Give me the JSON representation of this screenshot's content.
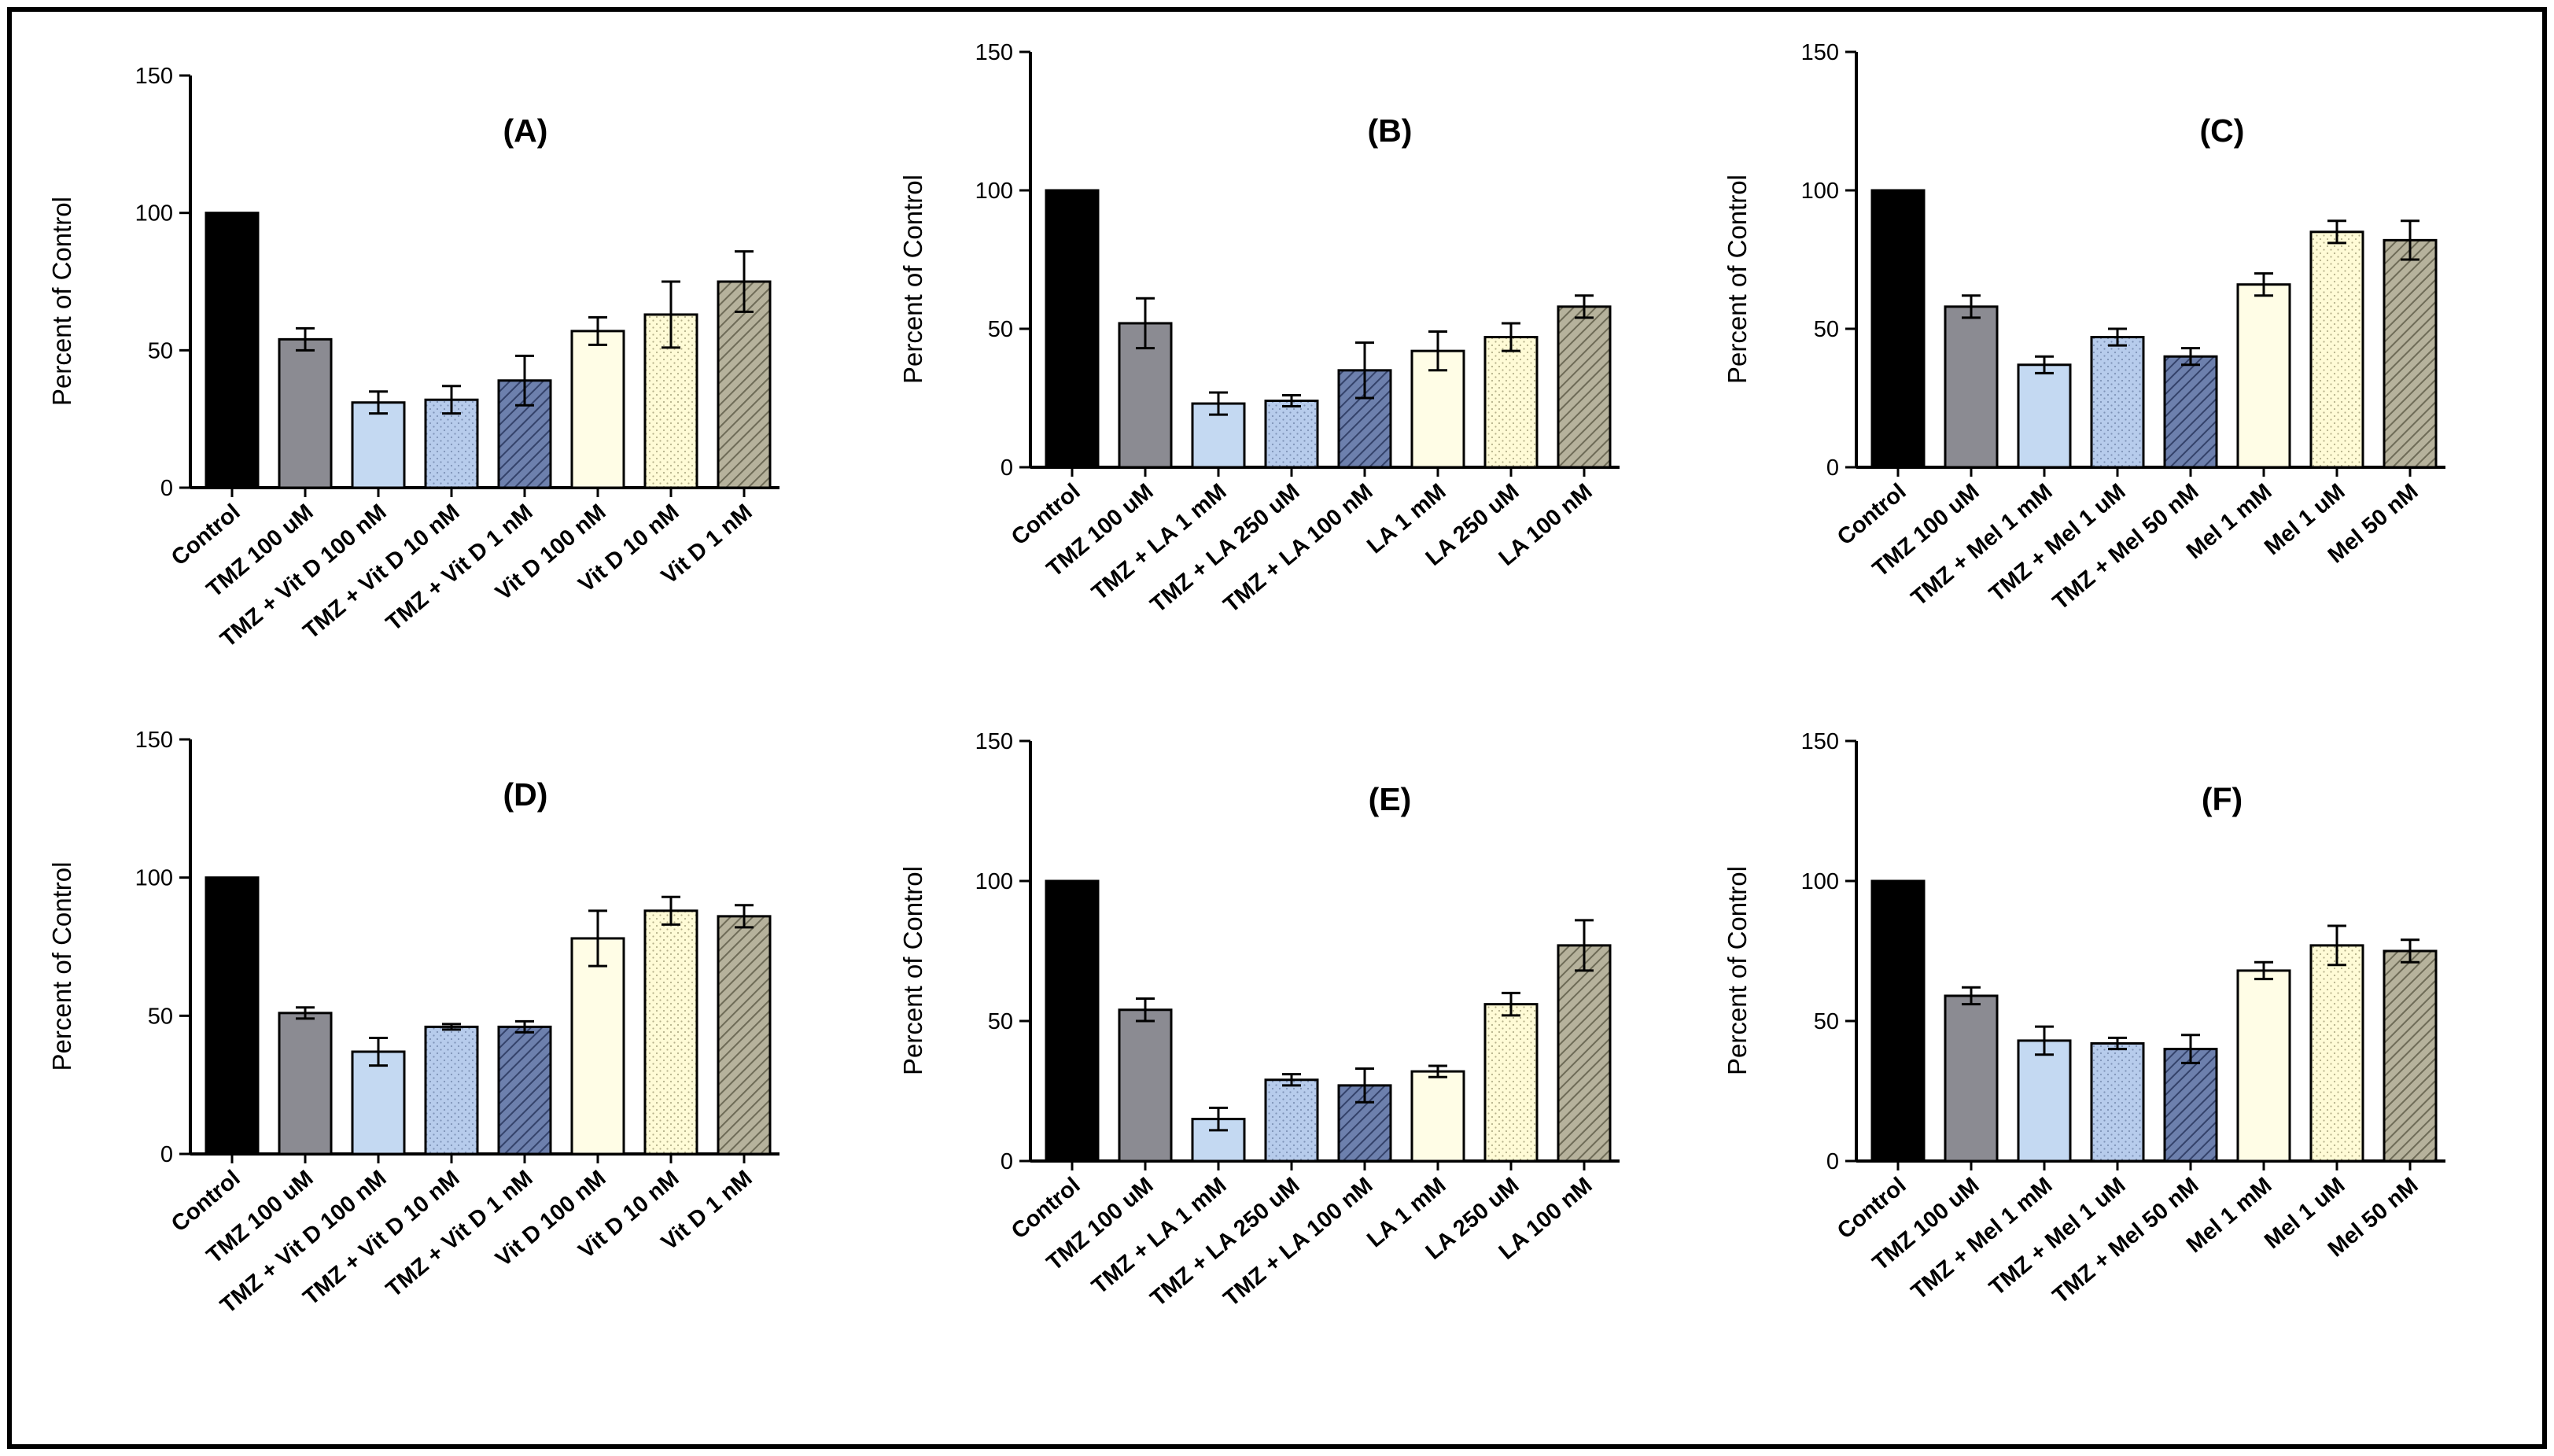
{
  "colors": {
    "border": "#000000",
    "control": "#000000",
    "tmz": "#8b8b92",
    "combo_light": "#c4d9f2",
    "combo_dotted": "#b7ccec",
    "combo_hatched": "#5c6f9e",
    "drug_plain": "#fffde6",
    "drug_dotted": "#fffbd6",
    "drug_hatched": "#a4a08a"
  },
  "chart_data": [
    {
      "id": "A",
      "type": "bar",
      "title": "(A)",
      "ylabel": "Percent of  Control",
      "xlabel": "",
      "ylim": [
        0,
        150
      ],
      "yticks": [
        0,
        50,
        100,
        150
      ],
      "categories": [
        "Control",
        "TMZ 100 uM",
        "TMZ + Vit D 100 nM",
        "TMZ + Vit D 10 nM",
        "TMZ + Vit D 1 nM",
        "Vit D 100 nM",
        "Vit D 10 nM",
        "Vit D 1 nM"
      ],
      "values": [
        100,
        54,
        31,
        32,
        39,
        57,
        63,
        75
      ],
      "errors": [
        0,
        4,
        4,
        5,
        9,
        5,
        12,
        11
      ],
      "styles": [
        "control",
        "tmz",
        "combo_light",
        "combo_dotted",
        "combo_hatched",
        "drug_plain",
        "drug_dotted",
        "drug_hatched"
      ]
    },
    {
      "id": "B",
      "type": "bar",
      "title": "(B)",
      "ylabel": "Percent of  Control",
      "xlabel": "",
      "ylim": [
        0,
        150
      ],
      "yticks": [
        0,
        50,
        100,
        150
      ],
      "categories": [
        "Control",
        "TMZ 100 uM",
        "TMZ + LA 1 mM",
        "TMZ + LA 250 uM",
        "TMZ + LA 100 nM",
        "LA 1 mM",
        "LA 250 uM",
        "LA 100 nM"
      ],
      "values": [
        100,
        52,
        23,
        24,
        35,
        42,
        47,
        58
      ],
      "errors": [
        0,
        9,
        4,
        2,
        10,
        7,
        5,
        4
      ],
      "styles": [
        "control",
        "tmz",
        "combo_light",
        "combo_dotted",
        "combo_hatched",
        "drug_plain",
        "drug_dotted",
        "drug_hatched"
      ]
    },
    {
      "id": "C",
      "type": "bar",
      "title": "(C)",
      "ylabel": "Percent of  Control",
      "xlabel": "",
      "ylim": [
        0,
        150
      ],
      "yticks": [
        0,
        50,
        100,
        150
      ],
      "categories": [
        "Control",
        "TMZ 100 uM",
        "TMZ + Mel 1 mM",
        "TMZ + Mel 1 uM",
        "TMZ + Mel 50 nM",
        "Mel 1 mM",
        "Mel 1 uM",
        "Mel 50 nM"
      ],
      "values": [
        100,
        58,
        37,
        47,
        40,
        66,
        85,
        82
      ],
      "errors": [
        0,
        4,
        3,
        3,
        3,
        4,
        4,
        7
      ],
      "styles": [
        "control",
        "tmz",
        "combo_light",
        "combo_dotted",
        "combo_hatched",
        "drug_plain",
        "drug_dotted",
        "drug_hatched"
      ]
    },
    {
      "id": "D",
      "type": "bar",
      "title": "(D)",
      "ylabel": "Percent of  Control",
      "xlabel": "",
      "ylim": [
        0,
        150
      ],
      "yticks": [
        0,
        50,
        100,
        150
      ],
      "categories": [
        "Control",
        "TMZ 100 uM",
        "TMZ + Vit D 100 nM",
        "TMZ + Vit D 10 nM",
        "TMZ + Vit D 1 nM",
        "Vit D 100 nM",
        "Vit D 10 nM",
        "Vit D 1 nM"
      ],
      "values": [
        100,
        51,
        37,
        46,
        46,
        78,
        88,
        86
      ],
      "errors": [
        0,
        2,
        5,
        1,
        2,
        10,
        5,
        4
      ],
      "styles": [
        "control",
        "tmz",
        "combo_light",
        "combo_dotted",
        "combo_hatched",
        "drug_plain",
        "drug_dotted",
        "drug_hatched"
      ]
    },
    {
      "id": "E",
      "type": "bar",
      "title": "(E)",
      "ylabel": "Percent of  Control",
      "xlabel": "",
      "ylim": [
        0,
        150
      ],
      "yticks": [
        0,
        50,
        100,
        150
      ],
      "categories": [
        "Control",
        "TMZ 100 uM",
        "TMZ + LA 1 mM",
        "TMZ + LA 250 uM",
        "TMZ + LA 100 nM",
        "LA 1 mM",
        "LA 250 uM",
        "LA 100 nM"
      ],
      "values": [
        100,
        54,
        15,
        29,
        27,
        32,
        56,
        77
      ],
      "errors": [
        0,
        4,
        4,
        2,
        6,
        2,
        4,
        9
      ],
      "styles": [
        "control",
        "tmz",
        "combo_light",
        "combo_dotted",
        "combo_hatched",
        "drug_plain",
        "drug_dotted",
        "drug_hatched"
      ]
    },
    {
      "id": "F",
      "type": "bar",
      "title": "(F)",
      "ylabel": "Percent of  Control",
      "xlabel": "",
      "ylim": [
        0,
        150
      ],
      "yticks": [
        0,
        50,
        100,
        150
      ],
      "categories": [
        "Control",
        "TMZ 100 uM",
        "TMZ + Mel 1 mM",
        "TMZ + Mel 1 uM",
        "TMZ + Mel 50 nM",
        "Mel 1 mM",
        "Mel 1 uM",
        "Mel 50 nM"
      ],
      "values": [
        100,
        59,
        43,
        42,
        40,
        68,
        77,
        75
      ],
      "errors": [
        0,
        3,
        5,
        2,
        5,
        3,
        7,
        4
      ],
      "styles": [
        "control",
        "tmz",
        "combo_light",
        "combo_dotted",
        "combo_hatched",
        "drug_plain",
        "drug_dotted",
        "drug_hatched"
      ]
    }
  ]
}
